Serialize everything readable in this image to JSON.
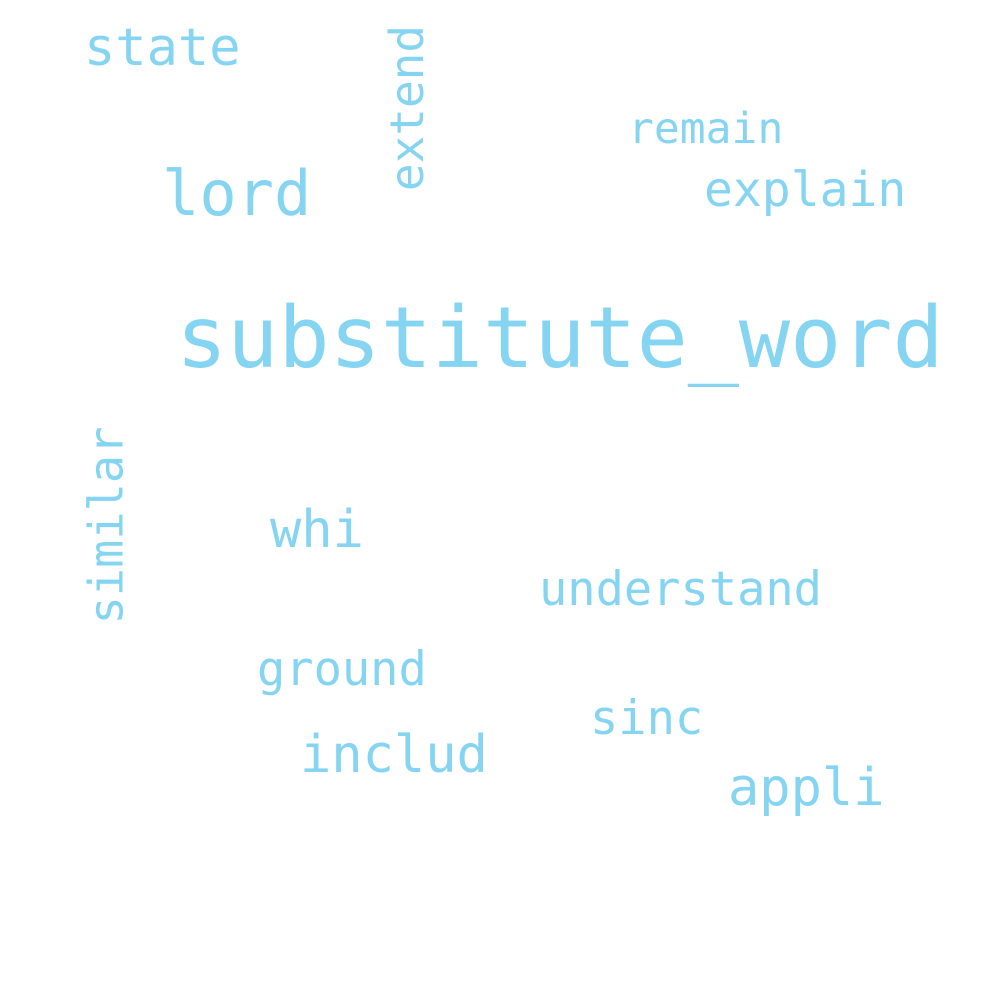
{
  "cloud": {
    "color": "#84d4f2",
    "background": "#ffffff",
    "words": {
      "state": "state",
      "extend": "extend",
      "remain": "remain",
      "lord": "lord",
      "explain": "explain",
      "substitute_word": "substitute_word",
      "similar": "similar",
      "whi": "whi",
      "understand": "understand",
      "ground": "ground",
      "sinc": "sinc",
      "includ": "includ",
      "appli": "appli"
    }
  }
}
